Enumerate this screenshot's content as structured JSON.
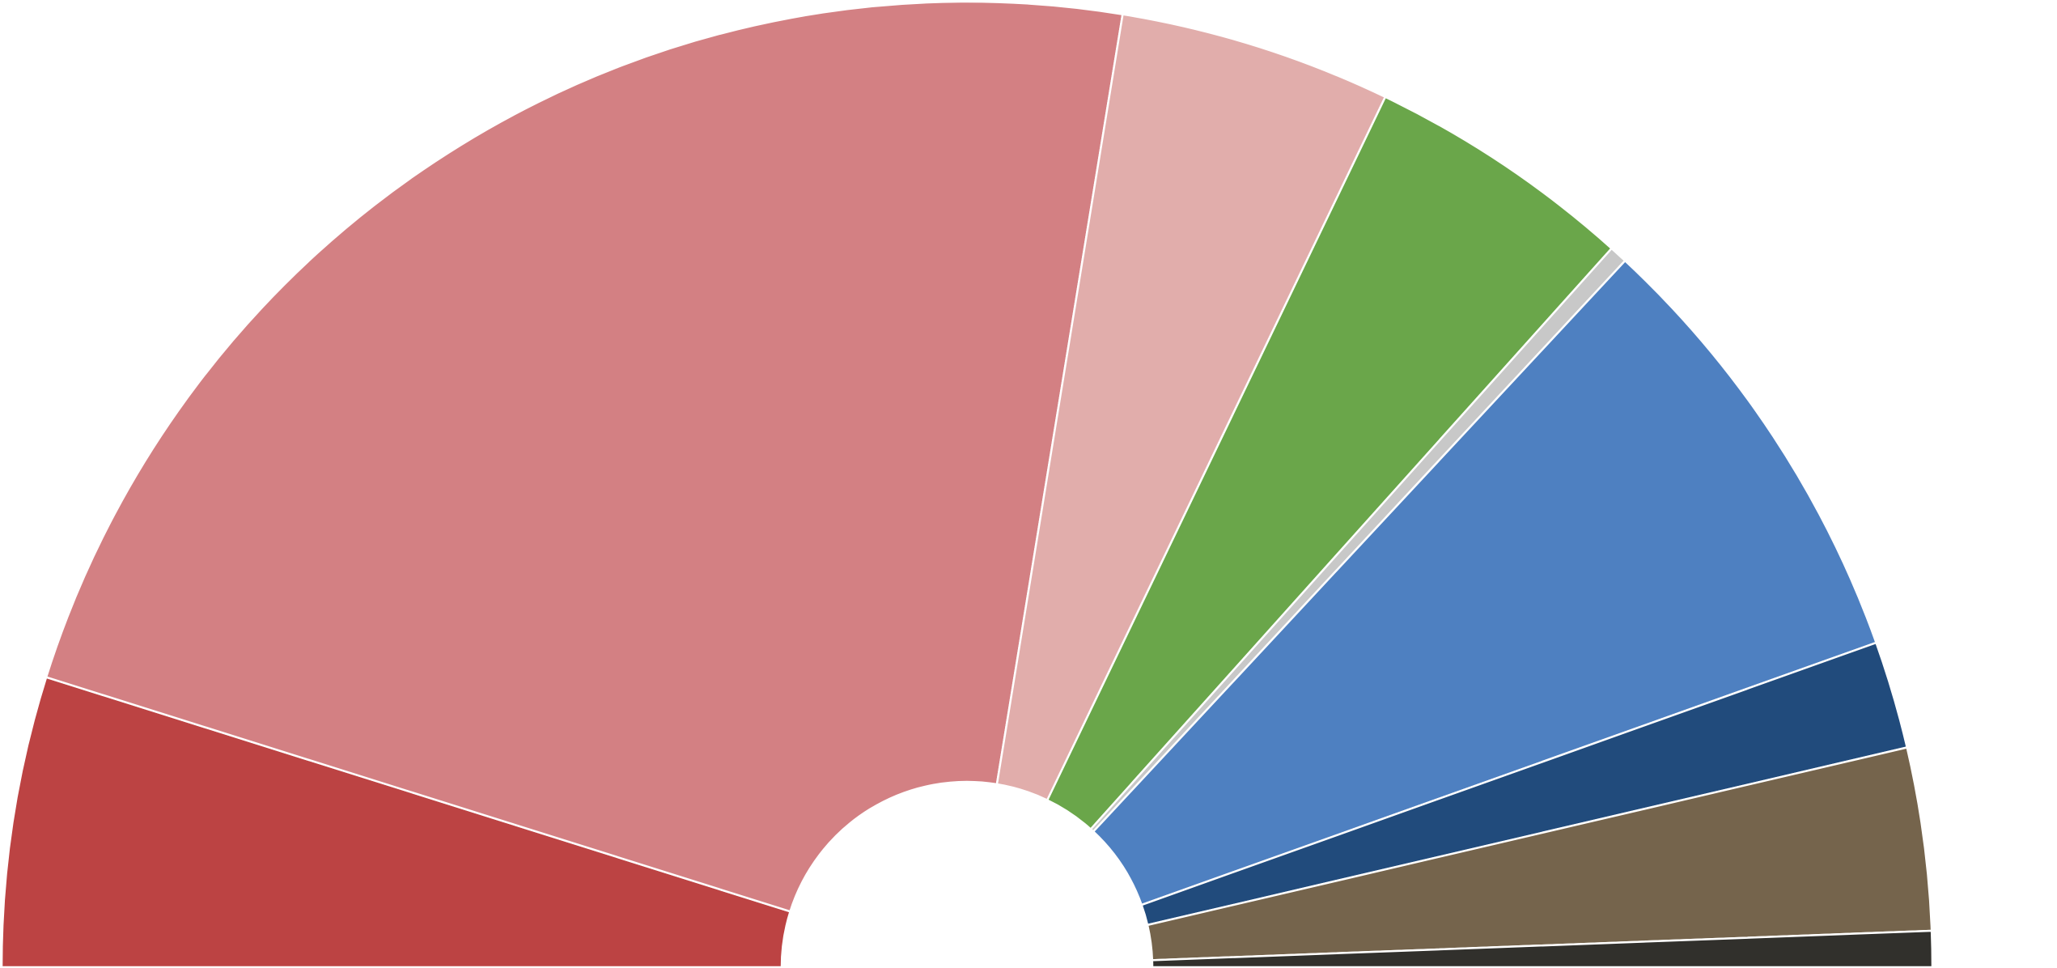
{
  "chart_data": {
    "type": "semi-donut",
    "values": [
      9.7,
      45.4,
      9.1,
      9.0,
      0.6,
      15.2,
      3.6,
      6.1,
      1.2
    ],
    "colors": [
      "#bc4343",
      "#d38083",
      "#e1adab",
      "#6aa64a",
      "#c8c8c8",
      "#4e80c1",
      "#214b7c",
      "#75644c",
      "#31302c"
    ]
  }
}
